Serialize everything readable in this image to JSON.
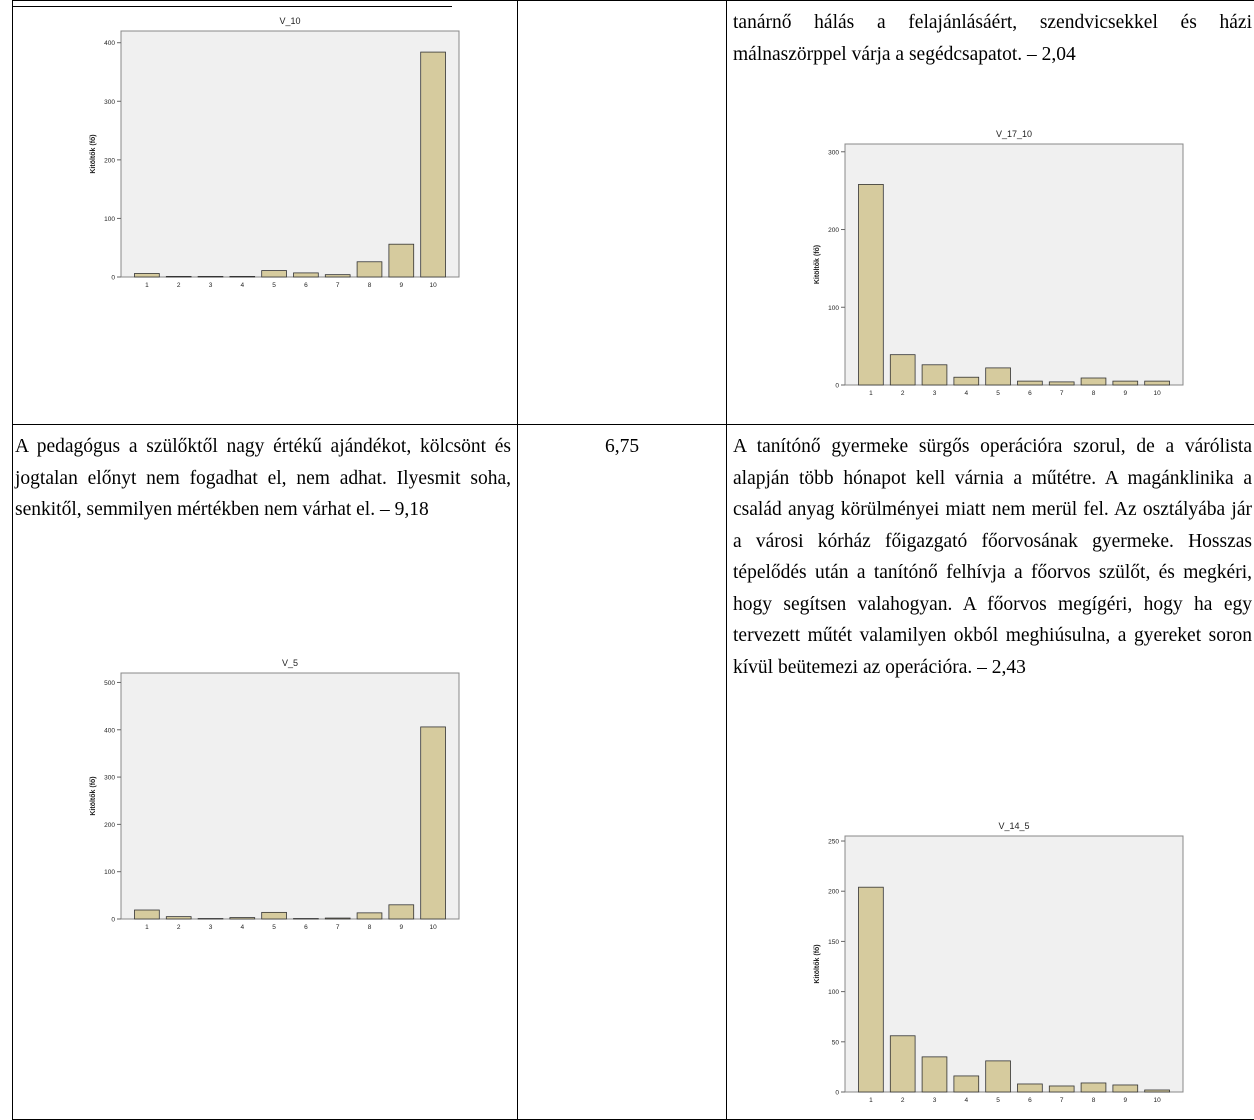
{
  "rows": [
    {
      "col1": {
        "text": ""
      },
      "col2": {
        "score": ""
      },
      "col3": {
        "text": "tanárnő hálás a felajánlásáért, szendvicsekkel és házi málnaszörppel várja a segédcsapatot. – 2,04"
      }
    },
    {
      "col1": {
        "text": "A pedagógus a szülőktől nagy értékű ajándékot, kölcsönt és jogtalan előnyt nem fogadhat el, nem adhat. Ilyesmit soha, senkitől, semmilyen mértékben nem várhat el. – 9,18"
      },
      "col2": {
        "score": "6,75"
      },
      "col3": {
        "text": "A tanítónő gyermeke sürgős operációra szorul, de a várólista alapján több hónapot kell várnia a műtétre. A magánklinika a család anyag körülményei miatt nem merül fel. Az osztályába jár a városi kórház főigazgató főorvosának gyermeke. Hosszas tépelődés után a tanítónő felhívja a főorvos szülőt, és megkéri, hogy segítsen valahogyan. A főorvos megígéri, hogy ha egy tervezett műtét valamilyen okból meghiúsulna, a gyereket soron kívül beütemezi az operációra. – 2,43"
      }
    }
  ],
  "chart_data": [
    {
      "id": "v10",
      "type": "bar",
      "title": "V_10",
      "ylabel": "Kitöltők (fő)",
      "xlabel": "",
      "categories": [
        "1",
        "2",
        "3",
        "4",
        "5",
        "6",
        "7",
        "8",
        "9",
        "10"
      ],
      "values": [
        6,
        1,
        1,
        1,
        11,
        7,
        4,
        26,
        56,
        384
      ],
      "ylim": [
        0,
        420
      ],
      "yticks": [
        0,
        100,
        200,
        300,
        400
      ],
      "colors": {
        "bar": "#d6cb9e",
        "plot_bg": "#f0f0f0"
      }
    },
    {
      "id": "v17_10",
      "type": "bar",
      "title": "V_17_10",
      "ylabel": "Kitöltők (fő)",
      "xlabel": "",
      "categories": [
        "1",
        "2",
        "3",
        "4",
        "5",
        "6",
        "7",
        "8",
        "9",
        "10"
      ],
      "values": [
        258,
        39,
        26,
        10,
        22,
        5,
        4,
        9,
        5,
        5
      ],
      "ylim": [
        0,
        310
      ],
      "yticks": [
        0,
        100,
        200,
        300
      ],
      "colors": {
        "bar": "#d6cb9e",
        "plot_bg": "#f0f0f0"
      }
    },
    {
      "id": "v5",
      "type": "bar",
      "title": "V_5",
      "ylabel": "Kitöltők (fő)",
      "xlabel": "",
      "categories": [
        "1",
        "2",
        "3",
        "4",
        "5",
        "6",
        "7",
        "8",
        "9",
        "10"
      ],
      "values": [
        19,
        5,
        1,
        3,
        14,
        1,
        2,
        13,
        30,
        406
      ],
      "ylim": [
        0,
        520
      ],
      "yticks": [
        0,
        100,
        200,
        300,
        400,
        500
      ],
      "colors": {
        "bar": "#d6cb9e",
        "plot_bg": "#f0f0f0"
      }
    },
    {
      "id": "v14_5",
      "type": "bar",
      "title": "V_14_5",
      "ylabel": "Kitöltők (fő)",
      "xlabel": "",
      "categories": [
        "1",
        "2",
        "3",
        "4",
        "5",
        "6",
        "7",
        "8",
        "9",
        "10"
      ],
      "values": [
        204,
        56,
        35,
        16,
        31,
        8,
        6,
        9,
        7,
        2
      ],
      "ylim": [
        0,
        255
      ],
      "yticks": [
        0,
        50,
        100,
        150,
        200,
        250
      ],
      "colors": {
        "bar": "#d6cb9e",
        "plot_bg": "#f0f0f0"
      }
    }
  ]
}
